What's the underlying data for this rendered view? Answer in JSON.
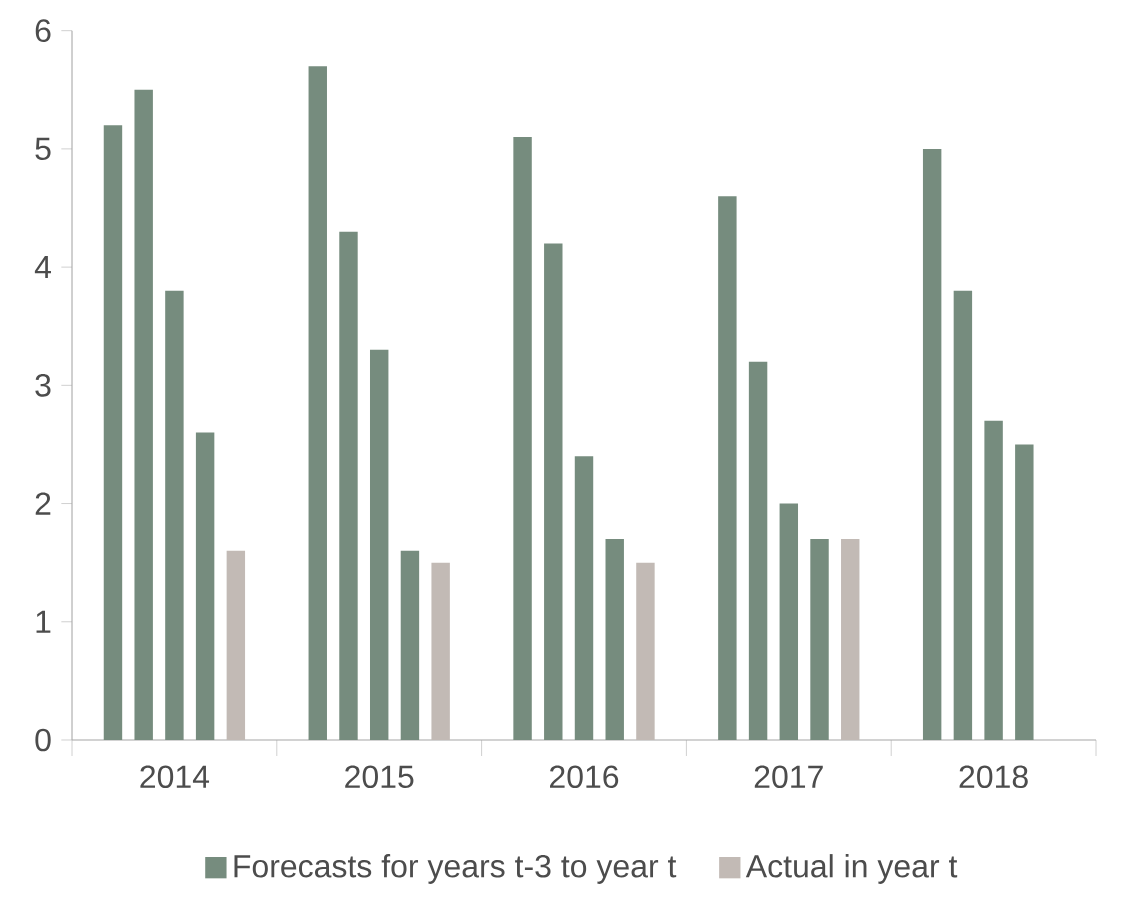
{
  "chart_data": {
    "type": "bar",
    "categories": [
      "2014",
      "2015",
      "2016",
      "2017",
      "2018"
    ],
    "series": [
      {
        "name": "Forecasts for years t-3 to year t",
        "color": "#768c7e",
        "values": [
          5.2,
          5.7,
          5.1,
          4.6,
          5.0
        ]
      },
      {
        "color": "#768c7e",
        "values": [
          5.5,
          4.3,
          4.2,
          3.2,
          3.8
        ]
      },
      {
        "color": "#768c7e",
        "values": [
          3.8,
          3.3,
          2.4,
          2.0,
          2.7
        ]
      },
      {
        "color": "#768c7e",
        "values": [
          2.6,
          1.6,
          1.7,
          1.7,
          2.5
        ]
      },
      {
        "name": "Actual in year t",
        "color": "#c2bab5",
        "values": [
          1.6,
          1.5,
          1.5,
          1.7,
          null
        ]
      }
    ],
    "ylim": [
      0,
      6
    ],
    "yticks": [
      0,
      1,
      2,
      3,
      4,
      5,
      6
    ],
    "grid": false,
    "legend": "bottom"
  }
}
